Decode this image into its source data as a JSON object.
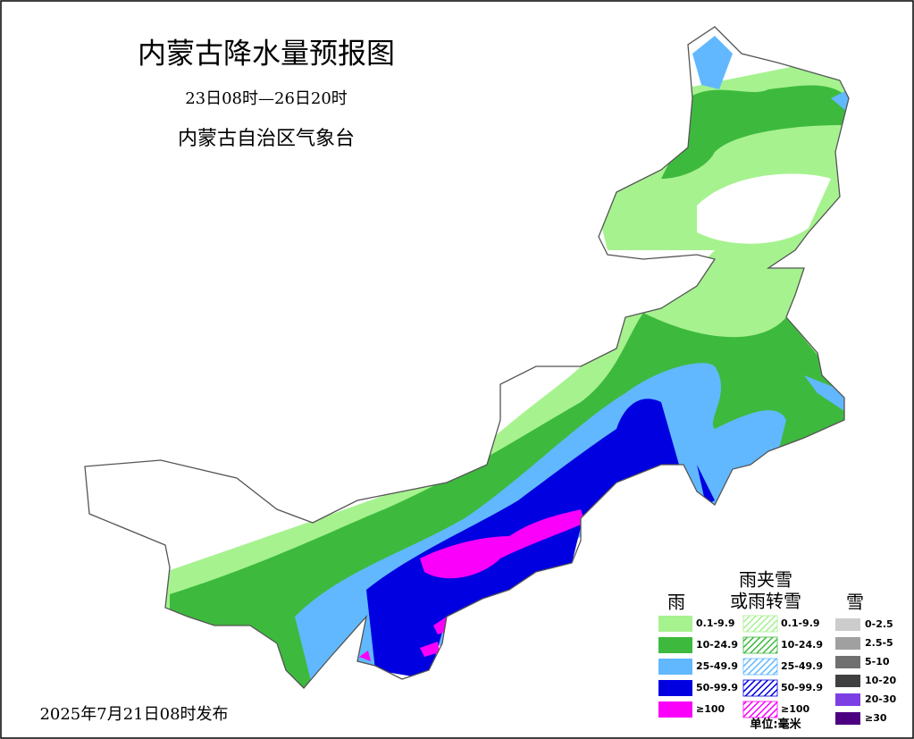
{
  "header": {
    "title": "内蒙古降水量预报图",
    "period": "23日08时—26日20时",
    "agency": "内蒙古自治区气象台"
  },
  "issued": "2025年7月21日08时发布",
  "legend": {
    "rain": {
      "title": "雨",
      "items": [
        "0.1-9.9",
        "10-24.9",
        "25-49.9",
        "50-99.9",
        "≥100"
      ],
      "colors": [
        "#a6f28f",
        "#3dba3d",
        "#61b8ff",
        "#0000e1",
        "#fa00fa"
      ]
    },
    "mixed": {
      "title": [
        "雨夹雪",
        "或雨转雪"
      ],
      "items": [
        "0.1-9.9",
        "10-24.9",
        "25-49.9",
        "50-99.9",
        "≥100"
      ],
      "colors": [
        "#a6f28f",
        "#3dba3d",
        "#61b8ff",
        "#0000e1",
        "#fa00fa"
      ]
    },
    "snow": {
      "title": "雪",
      "items": [
        "0-2.5",
        "2.5-5",
        "5-10",
        "10-20",
        "20-30",
        "≥30"
      ],
      "colors": [
        "#cccccc",
        "#a0a0a0",
        "#707070",
        "#404040",
        "#7b3fe4",
        "#4b0082"
      ]
    },
    "unit": "单位:毫米"
  }
}
